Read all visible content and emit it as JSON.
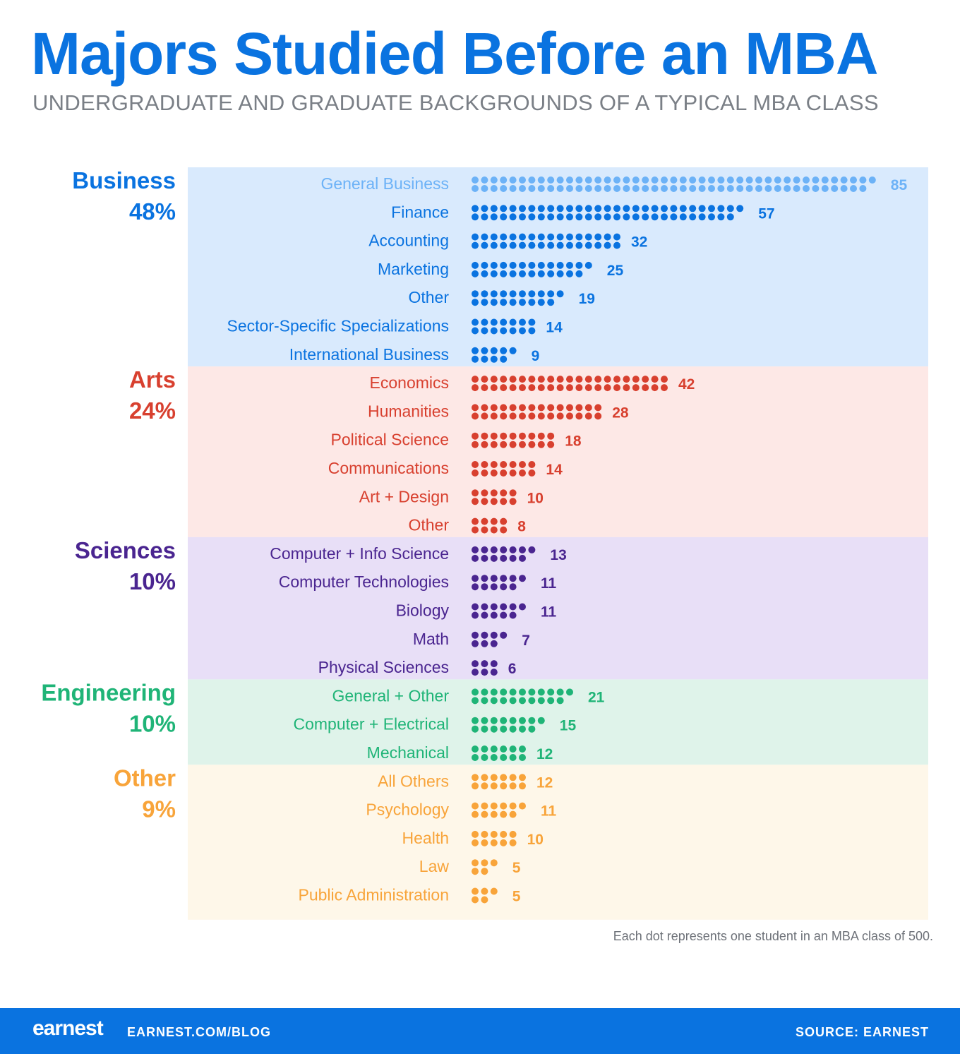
{
  "title": "Majors Studied Before an MBA",
  "subtitle": "UNDERGRADUATE AND GRADUATE BACKGROUNDS OF A TYPICAL MBA CLASS",
  "note": "Each dot represents one student in an MBA class of 500.",
  "footer": {
    "logo": "earnest",
    "url": "EARNEST.COM/BLOG",
    "source": "SOURCE: EARNEST"
  },
  "chart_data": {
    "type": "dot",
    "groups": [
      {
        "name": "Business",
        "pct": "48%",
        "color": "#0a73e0",
        "bg": "#d9eafd",
        "items": [
          {
            "label": "General Business",
            "value": 85,
            "color": "#6cb2f7"
          },
          {
            "label": "Finance",
            "value": 57
          },
          {
            "label": "Accounting",
            "value": 32
          },
          {
            "label": "Marketing",
            "value": 25
          },
          {
            "label": "Other",
            "value": 19
          },
          {
            "label": "Sector-Specific Specializations",
            "value": 14
          },
          {
            "label": "International Business",
            "value": 9
          }
        ]
      },
      {
        "name": "Arts",
        "pct": "24%",
        "color": "#d8402f",
        "bg": "#fde8e6",
        "items": [
          {
            "label": "Economics",
            "value": 42
          },
          {
            "label": "Humanities",
            "value": 28
          },
          {
            "label": "Political Science",
            "value": 18
          },
          {
            "label": "Communications",
            "value": 14
          },
          {
            "label": "Art + Design",
            "value": 10
          },
          {
            "label": "Other",
            "value": 8
          }
        ]
      },
      {
        "name": "Sciences",
        "pct": "10%",
        "color": "#4a2590",
        "bg": "#e8dff7",
        "items": [
          {
            "label": "Computer + Info Science",
            "value": 13
          },
          {
            "label": "Computer Technologies",
            "value": 11
          },
          {
            "label": "Biology",
            "value": 11
          },
          {
            "label": "Math",
            "value": 7
          },
          {
            "label": "Physical Sciences",
            "value": 6
          }
        ]
      },
      {
        "name": "Engineering",
        "pct": "10%",
        "color": "#1fb477",
        "bg": "#dff3ea",
        "items": [
          {
            "label": "General + Other",
            "value": 21
          },
          {
            "label": "Computer + Electrical",
            "value": 15
          },
          {
            "label": "Mechanical",
            "value": 12
          }
        ]
      },
      {
        "name": "Other",
        "pct": "9%",
        "color": "#f8a43a",
        "bg": "#fef7e9",
        "items": [
          {
            "label": "All Others",
            "value": 12
          },
          {
            "label": "Psychology",
            "value": 11
          },
          {
            "label": "Health",
            "value": 10
          },
          {
            "label": "Law",
            "value": 5
          },
          {
            "label": "Public Administration",
            "value": 5
          }
        ]
      }
    ]
  }
}
